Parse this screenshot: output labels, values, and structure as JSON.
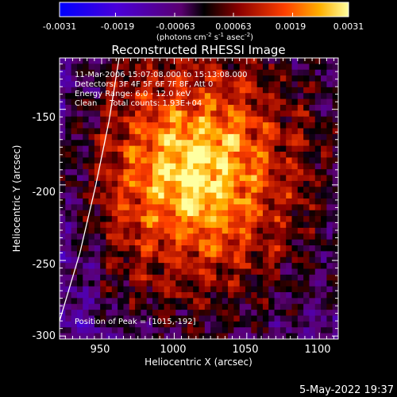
{
  "colorbar": {
    "ticks": [
      "-0.0031",
      "-0.0019",
      "-0.00063",
      "0.00063",
      "0.0019",
      "0.0031"
    ],
    "unit_parts": {
      "pre": "(photons cm",
      "e1": "-2",
      "mid1": " s",
      "e2": "-1",
      "mid2": " asec",
      "e3": "-2",
      "post": ")"
    },
    "range": [
      -0.0031,
      0.0031
    ]
  },
  "chart_data": {
    "type": "heatmap",
    "title": "Reconstructed RHESSI Image",
    "xlabel": "Heliocentric X (arcsec)",
    "ylabel": "Heliocentric Y (arcsec)",
    "xlim": [
      921,
      1113
    ],
    "ylim": [
      -302,
      -116
    ],
    "x_ticks": [
      950,
      1000,
      1050,
      1100
    ],
    "y_ticks": [
      -150,
      -200,
      -250,
      -300
    ],
    "peak": [
      1015,
      -192
    ],
    "limb_curve": [
      [
        921,
        -290
      ],
      [
        935,
        -245
      ],
      [
        946,
        -200
      ],
      [
        955,
        -158
      ],
      [
        962,
        -116
      ]
    ]
  },
  "annotations": {
    "time_range": "11-Mar-2006 15:07:08.000 to 15:13:08.000",
    "detectors": "Detectors: 3F 4F 5F 6F 7F 8F, Att 0",
    "energy": "Energy Range: 6.0 - 12.0 keV",
    "clean": "Clean",
    "counts": "Total counts: 1.93E+04",
    "peak": "Position of Peak = [1015,-192]"
  },
  "footer": {
    "date": "5-May-2022 19:37"
  }
}
